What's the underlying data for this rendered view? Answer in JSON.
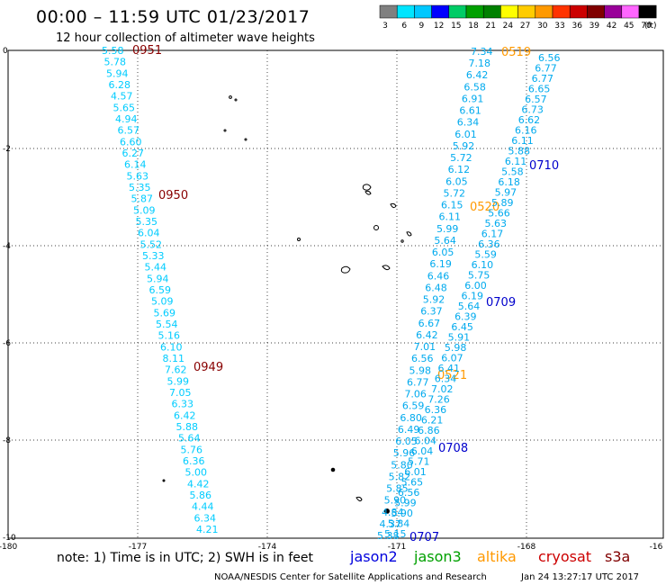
{
  "title": "00:00 – 11:59 UTC 01/23/2017",
  "subtitle": "12 hour collection of altimeter wave heights",
  "scale": {
    "labels": [
      "3",
      "6",
      "9",
      "12",
      "15",
      "18",
      "21",
      "24",
      "27",
      "30",
      "33",
      "36",
      "39",
      "42",
      "45",
      "70"
    ],
    "unit": "(ft)",
    "colors": [
      "#808080",
      "#00e5ff",
      "#00c8ff",
      "#0000ff",
      "#00cc66",
      "#00a000",
      "#008000",
      "#ffff00",
      "#ffcc00",
      "#ff9900",
      "#ff3300",
      "#cc0000",
      "#800000",
      "#990099",
      "#ff66ff",
      "#000000"
    ]
  },
  "axes": {
    "lon_labels": [
      "-180",
      "-177",
      "-174",
      "-171",
      "-168",
      "-16"
    ],
    "lat_labels": [
      "0",
      "-2",
      "-4",
      "-6",
      "-8",
      "-10"
    ]
  },
  "note": "note: 1) Time is in UTC; 2) SWH is in feet",
  "satellites": [
    {
      "name": "jason2",
      "color": "#0000dd"
    },
    {
      "name": "jason3",
      "color": "#00a000"
    },
    {
      "name": "altika",
      "color": "#ff9900"
    },
    {
      "name": "cryosat",
      "color": "#cc0000"
    },
    {
      "name": "s3a",
      "color": "#800000"
    }
  ],
  "footer": {
    "credit": "NOAA/NESDIS Center for Satellite Applications and Research",
    "timestamp": "Jan 24 13:27:17 UTC 2017"
  },
  "tracks": {
    "s3a": {
      "color": "#00ccff",
      "values": [
        "5.58",
        "5.78",
        "5.94",
        "6.28",
        "4.57",
        "5.65",
        "4.94",
        "6.57",
        "6.60",
        "6.27",
        "6.14",
        "5.63",
        "5.35",
        "5.87",
        "5.09",
        "5.35",
        "6.04",
        "5.52",
        "5.33",
        "5.44",
        "5.94",
        "6.59",
        "5.09",
        "5.69",
        "5.54",
        "5.16",
        "6.10",
        "8.11",
        "7.62",
        "5.99",
        "7.05",
        "6.33",
        "6.42",
        "5.88",
        "5.64",
        "5.76",
        "6.36",
        "5.00",
        "4.42",
        "5.86",
        "4.44",
        "6.34",
        "4.21"
      ],
      "times": [
        {
          "label": "0951",
          "color": "#880000"
        },
        {
          "label": "0950",
          "color": "#880000"
        },
        {
          "label": "0949",
          "color": "#880000"
        }
      ]
    },
    "altika": {
      "color": "#00aaee",
      "values": [
        "7.34",
        "7.18",
        "6.42",
        "6.58",
        "6.91",
        "6.61",
        "6.34",
        "6.01",
        "5.92",
        "5.72",
        "6.12",
        "6.05",
        "5.72",
        "6.15",
        "6.11",
        "5.99",
        "5.64",
        "6.05",
        "6.19",
        "6.46",
        "6.48",
        "5.92",
        "6.37",
        "6.67",
        "6.42",
        "7.01",
        "6.56",
        "5.98",
        "6.77",
        "7.06",
        "6.59",
        "6.80",
        "6.49",
        "6.05",
        "5.96",
        "5.80",
        "5.82",
        "5.85",
        "5.90",
        "4.84",
        "4.37",
        "5.38"
      ],
      "times": [
        {
          "label": "0519",
          "color": "#ff9900"
        },
        {
          "label": "0520",
          "color": "#ff9900"
        },
        {
          "label": "0521",
          "color": "#ff9900"
        }
      ]
    },
    "jason2": {
      "color": "#00aaee",
      "values": [
        "6.56",
        "6.77",
        "6.77",
        "6.65",
        "6.57",
        "6.73",
        "6.62",
        "6.16",
        "6.11",
        "5.88",
        "6.11",
        "5.58",
        "6.18",
        "5.97",
        "5.89",
        "5.66",
        "5.63",
        "6.17",
        "6.36",
        "5.59",
        "6.10",
        "5.75",
        "6.00",
        "6.19",
        "5.64",
        "6.39",
        "6.45",
        "5.91",
        "5.98",
        "6.07",
        "6.41",
        "6.34",
        "7.02",
        "7.26",
        "6.36",
        "6.21",
        "6.86",
        "6.04",
        "6.04",
        "5.71",
        "6.01",
        "5.65",
        "6.56",
        "5.99",
        "5.90",
        "5.84",
        "5.15"
      ],
      "times": [
        {
          "label": "0710",
          "color": "#0000cc"
        },
        {
          "label": "0709",
          "color": "#0000cc"
        },
        {
          "label": "0708",
          "color": "#0000cc"
        },
        {
          "label": "0707",
          "color": "#0000cc"
        }
      ]
    }
  }
}
